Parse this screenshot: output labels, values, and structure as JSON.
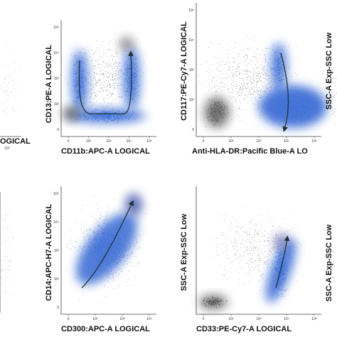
{
  "panels": [
    {
      "xlabel": "OGICAL",
      "xticks": [
        "10⁵"
      ]
    },
    {
      "ylabel": "CD13:PE-A LOGICAL",
      "xlabel": "CD11b:APC-A LOGICAL",
      "xticks": [
        "0",
        "10²",
        "10³",
        "10⁴",
        "10⁵"
      ],
      "yticks": [
        "10⁵",
        "10⁴",
        "10³",
        "10²",
        "0"
      ]
    },
    {
      "ylabel": "CD117:PE-Cy7-A LOGICAL",
      "xlabel": "Anti-HLA-DR:Pacific Blue-A LO",
      "xticks": [
        "0",
        "10²",
        "10³",
        "10⁴",
        "10⁵"
      ],
      "yticks": [
        "10⁵",
        "10⁴",
        "10³",
        "10²",
        "0"
      ]
    },
    {
      "ylabel": "SSC-A Exp-SSC Low"
    },
    {
      "ylabel": "CD14:APC-H7-A LOGICAL",
      "xlabel": "CD300:APC-A LOGICAL",
      "xticks": [
        "0",
        "10²",
        "10³",
        "10⁴"
      ],
      "yticks": [
        "10⁵",
        "10⁴",
        "10³",
        "10²",
        "0"
      ]
    },
    {
      "ylabel": "SSC-A Exp-SSC Low",
      "xlabel": "CD33:PE-Cy7-A LOGICAL",
      "xticks": [
        "0",
        "10²",
        "10³",
        "10⁴",
        "10⁵"
      ]
    },
    {
      "ylabel": "SSC-A Exp-SSC Low"
    }
  ]
}
